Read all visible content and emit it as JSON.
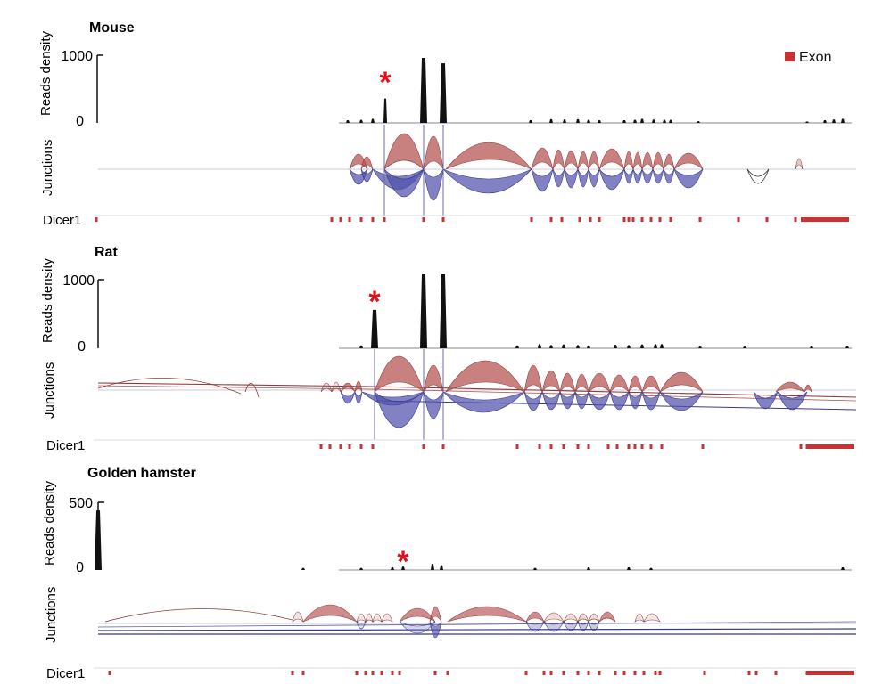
{
  "legend": {
    "label": "Exon",
    "color": "#c83232"
  },
  "colors": {
    "density": "#111111",
    "junction_plus": "#b4504f",
    "junction_minus": "#5050ac",
    "exon": "#c83232",
    "asterisk": "#e0101a"
  },
  "axis_labels": {
    "density": "Reads density",
    "junctions": "Junctions"
  },
  "chart_data": [
    {
      "type": "area",
      "species": "Mouse",
      "gene": "Dicer1",
      "ylim": [
        0,
        1000
      ],
      "yticks": [
        "1000",
        "0"
      ],
      "ylabel": "Reads density",
      "peaks": [
        {
          "x": 390,
          "y": 40
        },
        {
          "x": 405,
          "y": 45
        },
        {
          "x": 418,
          "y": 60
        },
        {
          "x": 432,
          "y": 360
        },
        {
          "x": 475,
          "y": 960
        },
        {
          "x": 497,
          "y": 880
        },
        {
          "x": 595,
          "y": 40
        },
        {
          "x": 618,
          "y": 55
        },
        {
          "x": 633,
          "y": 50
        },
        {
          "x": 648,
          "y": 55
        },
        {
          "x": 660,
          "y": 45
        },
        {
          "x": 672,
          "y": 40
        },
        {
          "x": 700,
          "y": 40
        },
        {
          "x": 712,
          "y": 45
        },
        {
          "x": 720,
          "y": 60
        },
        {
          "x": 733,
          "y": 50
        },
        {
          "x": 745,
          "y": 45
        },
        {
          "x": 752,
          "y": 45
        },
        {
          "x": 783,
          "y": 25
        },
        {
          "x": 905,
          "y": 20
        },
        {
          "x": 925,
          "y": 40
        },
        {
          "x": 935,
          "y": 50
        },
        {
          "x": 945,
          "y": 60
        }
      ],
      "exons": [
        108,
        372,
        382,
        392,
        405,
        418,
        431,
        475,
        497,
        596,
        618,
        630,
        650,
        662,
        672,
        700,
        705,
        710,
        720,
        730,
        740,
        752,
        785,
        828,
        860,
        892,
        900,
        910,
        920,
        930,
        940,
        948
      ],
      "asterisk_x": 432
    },
    {
      "type": "area",
      "species": "Rat",
      "gene": "Dicer1",
      "ylim": [
        0,
        1000
      ],
      "yticks": [
        "1000",
        "0"
      ],
      "ylabel": "Reads density",
      "peaks": [
        {
          "x": 405,
          "y": 40
        },
        {
          "x": 420,
          "y": 560
        },
        {
          "x": 475,
          "y": 1280
        },
        {
          "x": 497,
          "y": 1280
        },
        {
          "x": 580,
          "y": 40
        },
        {
          "x": 605,
          "y": 60
        },
        {
          "x": 618,
          "y": 45
        },
        {
          "x": 632,
          "y": 55
        },
        {
          "x": 648,
          "y": 45
        },
        {
          "x": 660,
          "y": 40
        },
        {
          "x": 690,
          "y": 50
        },
        {
          "x": 705,
          "y": 45
        },
        {
          "x": 720,
          "y": 55
        },
        {
          "x": 735,
          "y": 60
        },
        {
          "x": 742,
          "y": 60
        },
        {
          "x": 785,
          "y": 25
        },
        {
          "x": 835,
          "y": 25
        },
        {
          "x": 910,
          "y": 30
        },
        {
          "x": 950,
          "y": 30
        }
      ],
      "exons": [
        360,
        370,
        382,
        392,
        405,
        418,
        475,
        497,
        580,
        605,
        618,
        632,
        648,
        660,
        682,
        692,
        705,
        712,
        720,
        730,
        742,
        788,
        898,
        905,
        915,
        925,
        935,
        945,
        955
      ],
      "asterisk_x": 420
    },
    {
      "type": "area",
      "species": "Golden hamster",
      "gene": "Dicer1",
      "ylim": [
        0,
        500
      ],
      "yticks": [
        "500",
        "0"
      ],
      "ylabel": "Reads density",
      "peaks": [
        {
          "x": 110,
          "y": 440
        },
        {
          "x": 340,
          "y": 15
        },
        {
          "x": 405,
          "y": 15
        },
        {
          "x": 440,
          "y": 20
        },
        {
          "x": 452,
          "y": 25
        },
        {
          "x": 485,
          "y": 45
        },
        {
          "x": 495,
          "y": 35
        },
        {
          "x": 600,
          "y": 15
        },
        {
          "x": 660,
          "y": 20
        },
        {
          "x": 705,
          "y": 20
        },
        {
          "x": 730,
          "y": 15
        },
        {
          "x": 945,
          "y": 20
        }
      ],
      "exons": [
        123,
        328,
        340,
        400,
        410,
        418,
        428,
        440,
        448,
        488,
        502,
        590,
        610,
        618,
        632,
        648,
        660,
        672,
        690,
        700,
        712,
        722,
        735,
        740,
        790,
        840,
        848,
        870,
        905,
        915,
        925,
        935,
        945,
        955
      ],
      "asterisk_x": 452
    }
  ]
}
